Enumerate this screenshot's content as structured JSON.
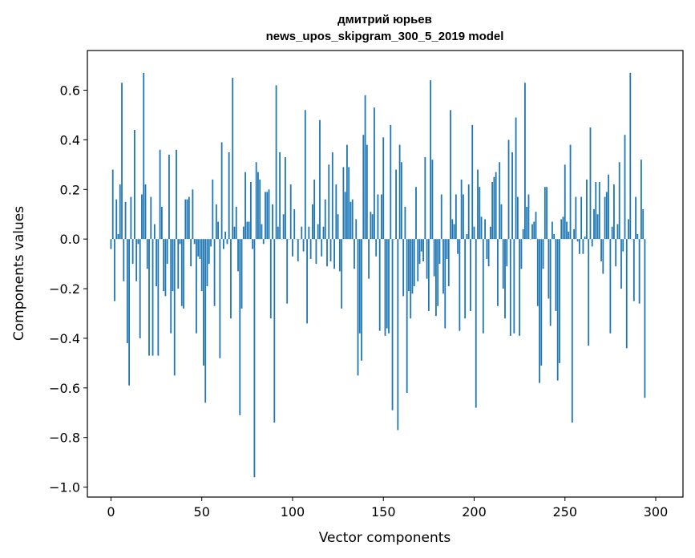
{
  "chart_data": {
    "type": "bar",
    "title": "дмитрий юрьев",
    "subtitle": "news_upos_skipgram_300_5_2019 model",
    "xlabel": "Vector components",
    "ylabel": "Components values",
    "xlim": [
      -13,
      315
    ],
    "ylim": [
      -1.04,
      0.76
    ],
    "xticks": [
      0,
      50,
      100,
      150,
      200,
      250,
      300
    ],
    "xtick_labels": [
      "0",
      "50",
      "100",
      "150",
      "200",
      "250",
      "300"
    ],
    "yticks": [
      -1.0,
      -0.8,
      -0.6,
      -0.4,
      -0.2,
      0.0,
      0.2,
      0.4,
      0.6
    ],
    "ytick_labels": [
      "−1.0",
      "−0.8",
      "−0.6",
      "−0.4",
      "−0.2",
      "0.0",
      "0.2",
      "0.4",
      "0.6"
    ],
    "grid": false,
    "color": "#1f77b4",
    "x": "0..299 (one bar per vector component)",
    "values": [
      -0.04,
      0.28,
      -0.25,
      0.16,
      0.02,
      0.22,
      0.63,
      -0.17,
      0.15,
      -0.42,
      -0.59,
      0.17,
      -0.1,
      0.44,
      -0.17,
      -0.02,
      -0.4,
      0.18,
      0.67,
      0.22,
      -0.12,
      -0.47,
      0.17,
      -0.47,
      0.06,
      -0.19,
      -0.47,
      0.36,
      0.13,
      -0.21,
      -0.23,
      -0.1,
      0.34,
      -0.38,
      -0.21,
      -0.55,
      0.36,
      -0.2,
      -0.02,
      -0.27,
      -0.28,
      0.16,
      0.16,
      0.17,
      -0.11,
      0.2,
      -0.02,
      -0.38,
      -0.07,
      -0.08,
      -0.21,
      -0.51,
      -0.66,
      -0.19,
      -0.1,
      -0.03,
      0.24,
      -0.27,
      0.14,
      0.07,
      -0.48,
      0.39,
      -0.04,
      0.03,
      -0.02,
      0.35,
      -0.32,
      0.65,
      0.05,
      0.13,
      -0.13,
      -0.71,
      -0.28,
      0.05,
      0.27,
      0.07,
      0.07,
      0.23,
      -0.04,
      -0.96,
      0.31,
      0.27,
      0.24,
      0.06,
      -0.02,
      0.19,
      0.19,
      0.2,
      -0.32,
      0.14,
      -0.74,
      0.62,
      0.05,
      0.35,
      0.0,
      0.1,
      0.33,
      -0.26,
      0.0,
      0.22,
      -0.07,
      0.12,
      0.0,
      -0.09,
      0.0,
      0.05,
      -0.05,
      0.52,
      -0.34,
      0.05,
      -0.08,
      0.14,
      0.24,
      -0.1,
      0.06,
      0.48,
      -0.07,
      0.05,
      0.16,
      -0.11,
      0.3,
      -0.09,
      0.35,
      -0.12,
      0.22,
      0.1,
      -0.13,
      -0.28,
      0.29,
      0.19,
      0.38,
      0.29,
      0.15,
      0.16,
      -0.12,
      0.08,
      -0.55,
      -0.38,
      -0.49,
      0.42,
      0.58,
      0.38,
      -0.16,
      0.11,
      0.1,
      0.53,
      -0.07,
      0.18,
      -0.37,
      0.18,
      0.41,
      -0.39,
      -0.36,
      -0.38,
      0.46,
      -0.69,
      0.0,
      0.28,
      -0.77,
      0.38,
      0.31,
      -0.23,
      0.13,
      -0.62,
      -0.21,
      -0.32,
      -0.22,
      -0.19,
      0.21,
      -0.17,
      -0.1,
      -0.05,
      -0.09,
      0.33,
      -0.16,
      -0.29,
      0.64,
      0.32,
      -0.15,
      -0.31,
      -0.27,
      -0.1,
      0.18,
      -0.22,
      -0.36,
      -0.08,
      -0.19,
      0.52,
      0.08,
      0.06,
      0.18,
      -0.06,
      -0.37,
      0.24,
      0.18,
      -0.32,
      0.02,
      0.22,
      -0.29,
      0.46,
      0.05,
      -0.68,
      0.28,
      0.21,
      0.09,
      -0.38,
      0.08,
      -0.08,
      -0.11,
      0.05,
      0.23,
      0.25,
      0.27,
      -0.27,
      0.31,
      0.14,
      -0.2,
      -0.32,
      -0.11,
      0.4,
      -0.39,
      0.35,
      -0.38,
      0.49,
      0.17,
      -0.39,
      -0.12,
      0.04,
      0.63,
      0.13,
      0.18,
      0.0,
      0.06,
      0.07,
      0.11,
      -0.27,
      -0.58,
      -0.51,
      -0.12,
      0.21,
      0.21,
      -0.24,
      -0.35,
      0.07,
      0.02,
      -0.29,
      -0.57,
      -0.5,
      0.08,
      0.09,
      0.3,
      0.07,
      0.03,
      0.38,
      -0.74,
      0.04,
      0.17,
      -0.01,
      -0.06,
      0.17,
      -0.06,
      0.01,
      0.24,
      -0.43,
      0.45,
      -0.03,
      0.12,
      0.23,
      0.1,
      0.23,
      -0.09,
      -0.14,
      0.17,
      0.19,
      0.26,
      -0.38,
      0.05,
      0.22,
      -0.11,
      0.06,
      0.31,
      -0.2,
      -0.05,
      0.42,
      -0.44,
      0.08,
      0.67,
      0.0,
      -0.25,
      0.17,
      0.02,
      -0.26,
      0.32,
      0.12,
      -0.64
    ]
  }
}
